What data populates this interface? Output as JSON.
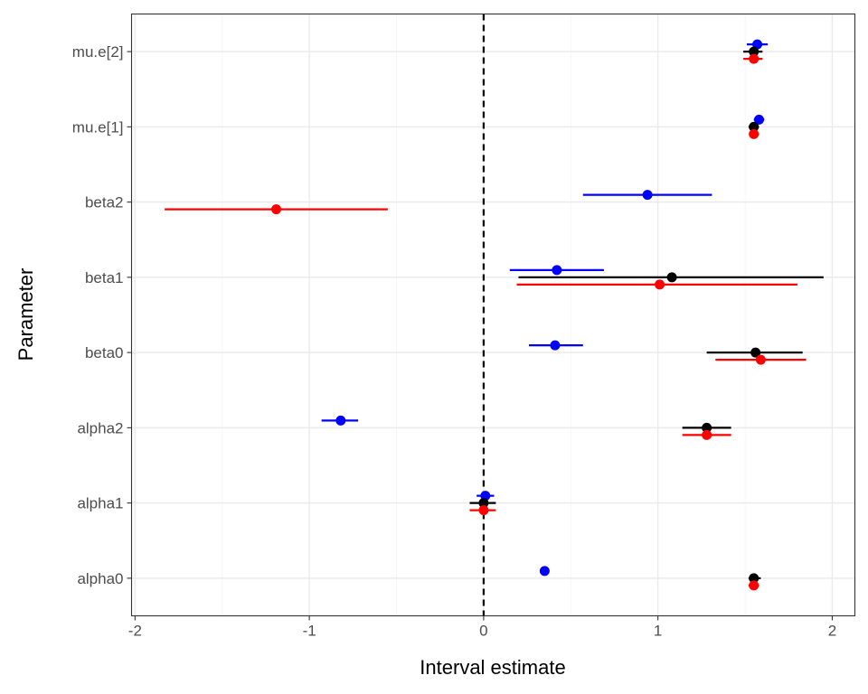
{
  "chart_data": {
    "type": "scatter",
    "subtype": "interval-plot",
    "title": "",
    "xlabel": "Interval estimate",
    "ylabel": "Parameter",
    "xlim": [
      -2.02,
      2.13
    ],
    "xticks": [
      -2,
      -1,
      0,
      1,
      2
    ],
    "xtick_labels": [
      "-2",
      "-1",
      "0",
      "1",
      "2"
    ],
    "reference_line": {
      "x": 0,
      "style": "dashed"
    },
    "grid": true,
    "legend": "none",
    "categories": [
      "alpha0",
      "alpha1",
      "alpha2",
      "beta0",
      "beta1",
      "beta2",
      "mu.e[1]",
      "mu.e[2]"
    ],
    "series": [
      {
        "name": "blue",
        "color": "#0000ff",
        "points": [
          {
            "param": "alpha0",
            "est": 0.35,
            "low": 0.35,
            "high": 0.35
          },
          {
            "param": "alpha1",
            "est": 0.01,
            "low": -0.04,
            "high": 0.06
          },
          {
            "param": "alpha2",
            "est": -0.82,
            "low": -0.93,
            "high": -0.72
          },
          {
            "param": "beta0",
            "est": 0.41,
            "low": 0.26,
            "high": 0.57
          },
          {
            "param": "beta1",
            "est": 0.42,
            "low": 0.15,
            "high": 0.69
          },
          {
            "param": "beta2",
            "est": 0.94,
            "low": 0.57,
            "high": 1.31
          },
          {
            "param": "mu.e[1]",
            "est": 1.58,
            "low": 1.55,
            "high": 1.61
          },
          {
            "param": "mu.e[2]",
            "est": 1.57,
            "low": 1.51,
            "high": 1.63
          }
        ]
      },
      {
        "name": "black",
        "color": "#000000",
        "points": [
          {
            "param": "alpha0",
            "est": 1.55,
            "low": 1.52,
            "high": 1.59
          },
          {
            "param": "alpha1",
            "est": 0.0,
            "low": -0.08,
            "high": 0.07
          },
          {
            "param": "alpha2",
            "est": 1.28,
            "low": 1.14,
            "high": 1.42
          },
          {
            "param": "beta0",
            "est": 1.56,
            "low": 1.28,
            "high": 1.83
          },
          {
            "param": "beta1",
            "est": 1.08,
            "low": 0.2,
            "high": 1.95
          },
          {
            "param": "mu.e[1]",
            "est": 1.55,
            "low": 1.52,
            "high": 1.58
          },
          {
            "param": "mu.e[2]",
            "est": 1.55,
            "low": 1.49,
            "high": 1.6
          }
        ]
      },
      {
        "name": "red",
        "color": "#ff0000",
        "points": [
          {
            "param": "alpha0",
            "est": 1.55,
            "low": 1.52,
            "high": 1.58
          },
          {
            "param": "alpha1",
            "est": 0.0,
            "low": -0.08,
            "high": 0.07
          },
          {
            "param": "alpha2",
            "est": 1.28,
            "low": 1.14,
            "high": 1.42
          },
          {
            "param": "beta0",
            "est": 1.59,
            "low": 1.33,
            "high": 1.85
          },
          {
            "param": "beta1",
            "est": 1.01,
            "low": 0.19,
            "high": 1.8
          },
          {
            "param": "beta2",
            "est": -1.19,
            "low": -1.83,
            "high": -0.55
          },
          {
            "param": "mu.e[1]",
            "est": 1.55,
            "low": 1.53,
            "high": 1.58
          },
          {
            "param": "mu.e[2]",
            "est": 1.55,
            "low": 1.49,
            "high": 1.6
          }
        ]
      }
    ]
  }
}
